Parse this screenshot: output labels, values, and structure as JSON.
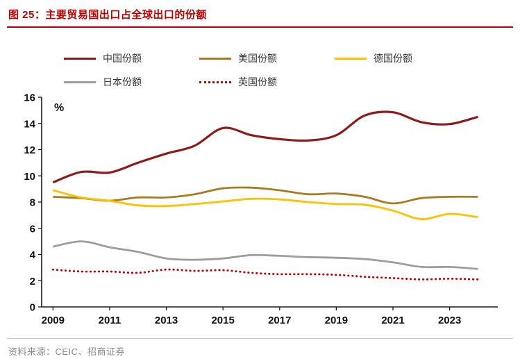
{
  "header": {
    "label": "图 25：",
    "title": "主要贸易国出口占全球出口的份额"
  },
  "footer": {
    "source": "资料来源：CEIC、招商证券"
  },
  "colors": {
    "accent": "#c00000",
    "axis": "#1a1a1a"
  },
  "chart_data": {
    "type": "line",
    "title": "主要贸易国出口占全球出口的份额",
    "ylabel": "%",
    "ylim": [
      0,
      16
    ],
    "ytick_step": 2,
    "grid": false,
    "legend_position": "top",
    "x": [
      2009,
      2010,
      2011,
      2012,
      2013,
      2014,
      2015,
      2016,
      2017,
      2018,
      2019,
      2020,
      2021,
      2022,
      2023,
      2024
    ],
    "xmin": 2008.6,
    "xmax": 2024.7,
    "xticks": [
      2009,
      2011,
      2013,
      2015,
      2017,
      2019,
      2021,
      2023
    ],
    "series": [
      {
        "name": "中国份额",
        "color": "#8e1b1b",
        "style": "solid",
        "width": 3.2,
        "values": [
          9.5,
          10.3,
          10.25,
          11.0,
          11.7,
          12.3,
          13.65,
          13.1,
          12.8,
          12.7,
          13.1,
          14.6,
          14.85,
          14.1,
          13.95,
          14.5
        ]
      },
      {
        "name": "美国份额",
        "color": "#aa7a20",
        "style": "solid",
        "width": 2.8,
        "values": [
          8.4,
          8.3,
          8.1,
          8.35,
          8.35,
          8.6,
          9.05,
          9.1,
          8.9,
          8.6,
          8.65,
          8.4,
          7.9,
          8.3,
          8.4,
          8.4
        ]
      },
      {
        "name": "德国份额",
        "color": "#ffc000",
        "style": "solid",
        "width": 2.8,
        "values": [
          8.9,
          8.35,
          8.1,
          7.75,
          7.7,
          7.85,
          8.05,
          8.25,
          8.2,
          8.0,
          7.85,
          7.8,
          7.35,
          6.7,
          7.1,
          6.85
        ]
      },
      {
        "name": "日本份额",
        "color": "#9c9c9c",
        "style": "solid",
        "width": 2.8,
        "values": [
          4.6,
          5.0,
          4.55,
          4.2,
          3.7,
          3.6,
          3.7,
          3.95,
          3.9,
          3.8,
          3.75,
          3.65,
          3.4,
          3.05,
          3.05,
          2.9
        ]
      },
      {
        "name": "英国份额",
        "color": "#c00000",
        "style": "dotted",
        "width": 2.8,
        "values": [
          2.85,
          2.7,
          2.7,
          2.6,
          2.85,
          2.75,
          2.8,
          2.6,
          2.5,
          2.5,
          2.45,
          2.3,
          2.2,
          2.1,
          2.15,
          2.1
        ]
      }
    ]
  }
}
